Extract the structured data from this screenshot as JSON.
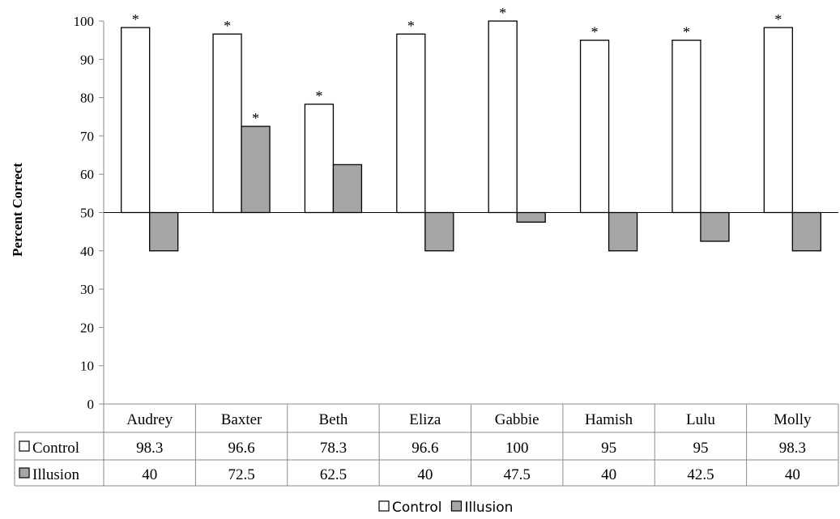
{
  "chart_data": {
    "type": "bar",
    "title": "",
    "xlabel": "",
    "ylabel": "Percent Correct",
    "ylim": [
      0,
      100
    ],
    "yticks": [
      0,
      10,
      20,
      30,
      40,
      50,
      60,
      70,
      80,
      90,
      100
    ],
    "baseline": 50,
    "categories": [
      "Audrey",
      "Baxter",
      "Beth",
      "Eliza",
      "Gabbie",
      "Hamish",
      "Lulu",
      "Molly"
    ],
    "series": [
      {
        "name": "Control",
        "color": "#ffffff",
        "values": [
          98.3,
          96.6,
          78.3,
          96.6,
          100,
          95,
          95,
          98.3
        ],
        "value_labels": [
          "98.3",
          "96.6",
          "78.3",
          "96.6",
          "100",
          "95",
          "95",
          "98.3"
        ],
        "significant": [
          true,
          true,
          true,
          true,
          true,
          true,
          true,
          true
        ]
      },
      {
        "name": "Illusion",
        "color": "#a6a6a6",
        "values": [
          40,
          72.5,
          62.5,
          40,
          47.5,
          40,
          42.5,
          40
        ],
        "value_labels": [
          "40",
          "72.5",
          "62.5",
          "40",
          "47.5",
          "40",
          "42.5",
          "40"
        ],
        "significant": [
          false,
          true,
          false,
          false,
          false,
          false,
          false,
          false
        ]
      }
    ],
    "significance_marker": "*",
    "data_table": true,
    "legend": {
      "position": "bottom",
      "entries": [
        "Control",
        "Illusion"
      ]
    },
    "grid": false
  }
}
